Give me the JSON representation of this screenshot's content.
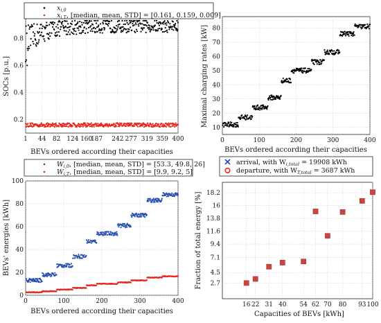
{
  "colors": {
    "black": "#000000",
    "red": "#e8261c",
    "blue": "#2a4fb0",
    "square": "#c9453f"
  },
  "chart_data": [
    {
      "id": "soc",
      "type": "scatter",
      "ylabel": "SOCs [p.u.]",
      "xlabel": "BEVs ordered according their capacities",
      "xticks": [
        "1",
        "44",
        "82",
        "124",
        "160",
        "187",
        "242",
        "277",
        "319",
        "359",
        "400"
      ],
      "xlim": [
        1,
        400
      ],
      "ylim": [
        0.1,
        0.95
      ],
      "yticks": [
        0.2,
        0.4,
        0.6,
        0.8
      ],
      "grid": true,
      "legend": {
        "placement": "top",
        "entries": [
          {
            "label": "x_{i,0}",
            "color": "black"
          },
          {
            "label": "x_{i,T}, [median, mean, STD] = [0.161, 0.159, 0.009]",
            "color": "red"
          }
        ]
      },
      "series": [
        {
          "label": "x_{i,0}",
          "color": "black",
          "pattern": "scatter rising from ~0.7 to ~0.9, median 0.88"
        },
        {
          "label": "x_{i,T}",
          "color": "red",
          "pattern": "flat around 0.16"
        }
      ]
    },
    {
      "id": "rates",
      "type": "scatter",
      "ylabel": "Maximal charging rates [kW]",
      "xlabel": "BEVs ordered according their capacities",
      "xlim": [
        0,
        400
      ],
      "ylim": [
        5,
        88
      ],
      "xticks": [
        0,
        100,
        200,
        300,
        400
      ],
      "yticks": [
        10,
        20,
        30,
        40,
        50,
        60,
        70,
        80
      ],
      "grid": true,
      "steps": [
        {
          "x": [
            1,
            43
          ],
          "y": 12
        },
        {
          "x": [
            44,
            81
          ],
          "y": 17
        },
        {
          "x": [
            82,
            123
          ],
          "y": 24
        },
        {
          "x": [
            124,
            159
          ],
          "y": 31
        },
        {
          "x": [
            160,
            186
          ],
          "y": 43
        },
        {
          "x": [
            187,
            241
          ],
          "y": 50
        },
        {
          "x": [
            242,
            276
          ],
          "y": 56
        },
        {
          "x": [
            277,
            318
          ],
          "y": 63
        },
        {
          "x": [
            319,
            358
          ],
          "y": 76
        },
        {
          "x": [
            359,
            400
          ],
          "y": 81
        }
      ]
    },
    {
      "id": "energies",
      "type": "scatter",
      "ylabel": "BEVs' energies [kWh]",
      "xlabel": "BEVs ordered according their capacities",
      "xlim": [
        0,
        400
      ],
      "ylim": [
        0,
        100
      ],
      "xticks": [
        0,
        100,
        200,
        300,
        400
      ],
      "yticks": [
        0,
        20,
        40,
        60,
        80,
        100
      ],
      "grid": true,
      "legend": {
        "placement": "top",
        "entries": [
          {
            "label": "W_{i,0}, [median, mean, STD] = [53.3, 49.8, 26]",
            "color": "blue"
          },
          {
            "label": "W_{i,T}, [median, mean, STD] = [9.9, 9.2, 5]",
            "color": "red"
          }
        ]
      },
      "series": [
        {
          "label": "W_{i,0}",
          "color": "blue",
          "steps": [
            {
              "x": [
                1,
                43
              ],
              "y": 13
            },
            {
              "x": [
                44,
                81
              ],
              "y": 18
            },
            {
              "x": [
                82,
                123
              ],
              "y": 26
            },
            {
              "x": [
                124,
                159
              ],
              "y": 34
            },
            {
              "x": [
                160,
                186
              ],
              "y": 47
            },
            {
              "x": [
                187,
                241
              ],
              "y": 54
            },
            {
              "x": [
                242,
                276
              ],
              "y": 61
            },
            {
              "x": [
                277,
                318
              ],
              "y": 70
            },
            {
              "x": [
                319,
                358
              ],
              "y": 83
            },
            {
              "x": [
                359,
                400
              ],
              "y": 88
            }
          ]
        },
        {
          "label": "W_{i,T}",
          "color": "red",
          "steps": [
            {
              "x": [
                1,
                43
              ],
              "y": 2.6
            },
            {
              "x": [
                44,
                81
              ],
              "y": 3.5
            },
            {
              "x": [
                82,
                123
              ],
              "y": 5
            },
            {
              "x": [
                124,
                159
              ],
              "y": 6.4
            },
            {
              "x": [
                160,
                186
              ],
              "y": 8.7
            },
            {
              "x": [
                187,
                241
              ],
              "y": 10
            },
            {
              "x": [
                242,
                276
              ],
              "y": 11.3
            },
            {
              "x": [
                277,
                318
              ],
              "y": 13
            },
            {
              "x": [
                319,
                358
              ],
              "y": 15.5
            },
            {
              "x": [
                359,
                400
              ],
              "y": 16.6
            }
          ]
        }
      ]
    },
    {
      "id": "fraction",
      "type": "scatter",
      "ylabel": "Fraction of total energy [%]",
      "xlabel": "Capacities of BEVs [kWh]",
      "xlim": [
        0,
        100
      ],
      "ylim": [
        0,
        20
      ],
      "xticks": [
        "16",
        "22",
        "31",
        "40",
        "54",
        "62",
        "70",
        "80",
        "93",
        "100"
      ],
      "xtick_values": [
        16,
        22,
        31,
        40,
        54,
        62,
        70,
        80,
        93,
        100
      ],
      "yticks": [
        "2.7",
        "4.5",
        "7.1",
        "9.4",
        "11.6",
        "13.8",
        "16",
        "18.2"
      ],
      "ytick_values": [
        2.7,
        4.5,
        7.1,
        9.4,
        11.6,
        13.8,
        16,
        18.2
      ],
      "grid": true,
      "legend": {
        "placement": "top",
        "entries": [
          {
            "label": "arrival, with W_{i,total} = 19908 kWh",
            "marker": "x",
            "color": "blue"
          },
          {
            "label": "departure, with W_{T,total} = 3687 kWh",
            "marker": "o",
            "color": "red"
          }
        ]
      },
      "points": [
        {
          "x": 16,
          "y": 2.7
        },
        {
          "x": 22,
          "y": 3.4
        },
        {
          "x": 31,
          "y": 5.5
        },
        {
          "x": 40,
          "y": 6.2
        },
        {
          "x": 54,
          "y": 6.4
        },
        {
          "x": 62,
          "y": 15
        },
        {
          "x": 70,
          "y": 10.8
        },
        {
          "x": 80,
          "y": 14.9
        },
        {
          "x": 93,
          "y": 16.8
        },
        {
          "x": 100,
          "y": 18.3
        }
      ]
    }
  ],
  "text": {
    "soc_ylabel": "SOCs [p.u.]",
    "soc_xlabel": "BEVs ordered according their capacities",
    "soc_leg1": "x",
    "soc_leg1_sub": "i,0",
    "soc_leg2": "x",
    "soc_leg2_sub": "i,T",
    "soc_leg2_rest": ", [median, mean, STD] = [0.161, 0.159, 0.009]",
    "rates_ylabel": "Maximal charging rates [kW]",
    "rates_xlabel": "BEVs ordered according their capacities",
    "en_ylabel": "BEVs' energies [kWh]",
    "en_xlabel": "BEVs ordered according their capacities",
    "en_leg1": "W",
    "en_leg1_sub": "i,0",
    "en_leg1_rest": ", [median, mean, STD] = [53.3, 49.8, 26]",
    "en_leg2": "W",
    "en_leg2_sub": "i,T",
    "en_leg2_rest": ", [median, mean, STD] = [9.9, 9.2, 5]",
    "fr_ylabel": "Fraction of total energy [%]",
    "fr_xlabel": "Capacities of BEVs [kWh]",
    "fr_leg1_pre": "arrival, with W",
    "fr_leg1_sub": "i,total",
    "fr_leg1_rest": " = 19908 kWh",
    "fr_leg2_pre": "departure, with W",
    "fr_leg2_sub": "T,total",
    "fr_leg2_rest": " = 3687 kWh"
  }
}
